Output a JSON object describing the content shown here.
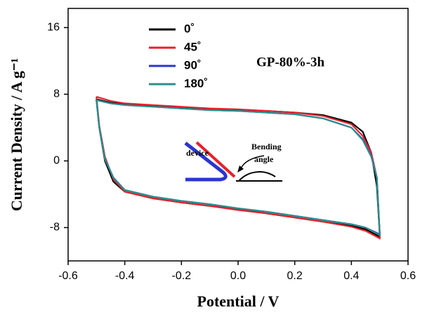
{
  "chart_data": {
    "type": "line",
    "xlabel": "Potential / V",
    "ylabel": "Current Density / A g⁻¹",
    "annotations": [
      "GP-80%-3h",
      "device",
      "Bending",
      "angle"
    ],
    "x": [
      -0.5,
      -0.45,
      -0.4,
      -0.3,
      -0.2,
      -0.1,
      0,
      0.1,
      0.2,
      0.3,
      0.4,
      0.44,
      0.47,
      0.49,
      0.5,
      0.5,
      0.45,
      0.4,
      0.3,
      0.2,
      0.1,
      0,
      -0.1,
      -0.2,
      -0.3,
      -0.4,
      -0.44,
      -0.47,
      -0.49,
      -0.5
    ],
    "series": [
      {
        "name": "0˚",
        "color": "#000000",
        "values": [
          7.4,
          7.0,
          6.8,
          6.6,
          6.4,
          6.2,
          6.1,
          6.0,
          5.8,
          5.5,
          4.6,
          3.5,
          1.0,
          -3.0,
          -8.8,
          -9.1,
          -8.2,
          -7.8,
          -7.3,
          -6.8,
          -6.3,
          -5.8,
          -5.4,
          -5.0,
          -4.5,
          -3.7,
          -2.5,
          0.0,
          4.0,
          7.4
        ]
      },
      {
        "name": "45˚",
        "color": "#e8202a",
        "values": [
          7.7,
          7.2,
          6.9,
          6.7,
          6.5,
          6.3,
          6.2,
          6.0,
          5.8,
          5.4,
          4.4,
          3.0,
          1.0,
          -2.0,
          -8.9,
          -9.3,
          -8.4,
          -7.9,
          -7.3,
          -6.8,
          -6.3,
          -5.9,
          -5.4,
          -5.0,
          -4.5,
          -3.7,
          -2.2,
          0.5,
          4.2,
          7.7
        ]
      },
      {
        "name": "90˚",
        "color": "#2a35d0",
        "values": [
          7.3,
          6.9,
          6.7,
          6.5,
          6.3,
          6.1,
          6.0,
          5.8,
          5.6,
          5.1,
          4.0,
          2.6,
          0.6,
          -2.0,
          -8.6,
          -8.8,
          -8.0,
          -7.6,
          -7.1,
          -6.6,
          -6.1,
          -5.7,
          -5.2,
          -4.8,
          -4.3,
          -3.5,
          -2.0,
          0.2,
          4.0,
          7.3
        ]
      },
      {
        "name": "180˚",
        "color": "#2a8f8a",
        "values": [
          7.3,
          6.9,
          6.7,
          6.5,
          6.3,
          6.1,
          6.0,
          5.8,
          5.6,
          5.1,
          4.0,
          2.5,
          0.5,
          -2.0,
          -8.7,
          -8.9,
          -8.0,
          -7.6,
          -7.1,
          -6.6,
          -6.1,
          -5.7,
          -5.2,
          -4.8,
          -4.3,
          -3.5,
          -2.0,
          0.2,
          4.0,
          7.3
        ]
      }
    ],
    "xlim": [
      -0.6,
      0.6
    ],
    "xticks": [
      -0.6,
      -0.4,
      -0.2,
      {
        "value": 0,
        "label": "0.0"
      },
      0.2,
      0.4,
      0.6
    ],
    "ylim": [
      -12,
      18.3
    ],
    "yticks": [
      -8,
      0,
      8,
      16
    ]
  }
}
